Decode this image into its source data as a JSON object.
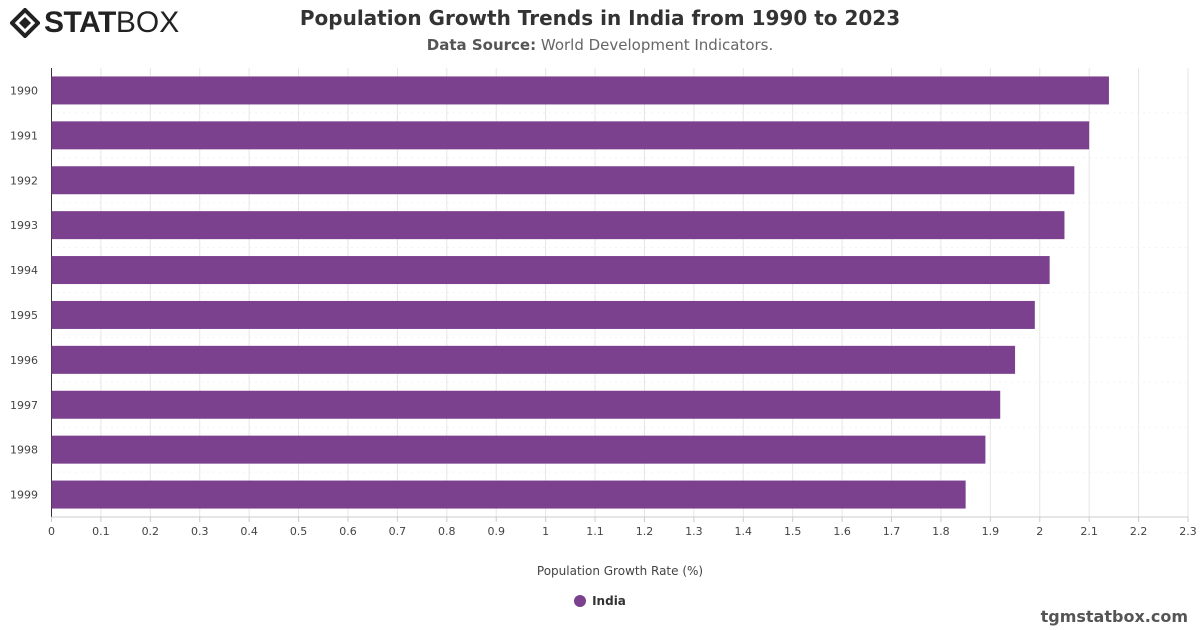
{
  "brand": {
    "logo_text_bold": "STAT",
    "logo_text_light": "BOX",
    "footer": "tgmstatbox.com"
  },
  "colors": {
    "bar": "#7b418e",
    "grid": "#e6e6e6"
  },
  "chart_data": {
    "type": "bar",
    "orientation": "horizontal",
    "title": "Population Growth Trends in India from 1990 to 2023",
    "subtitle_label": "Data Source:",
    "subtitle_value": "World Development Indicators.",
    "categories": [
      "1990",
      "1991",
      "1992",
      "1993",
      "1994",
      "1995",
      "1996",
      "1997",
      "1998",
      "1999"
    ],
    "series": [
      {
        "name": "India",
        "values": [
          2.14,
          2.1,
          2.07,
          2.05,
          2.02,
          1.99,
          1.95,
          1.92,
          1.89,
          1.85
        ]
      }
    ],
    "xlabel": "Population Growth Rate (%)",
    "ylabel": "",
    "xlim": [
      0,
      2.3
    ],
    "xticks": [
      "0",
      "0.1",
      "0.2",
      "0.3",
      "0.4",
      "0.5",
      "0.6",
      "0.7",
      "0.8",
      "0.9",
      "1",
      "1.1",
      "1.2",
      "1.3",
      "1.4",
      "1.5",
      "1.6",
      "1.7",
      "1.8",
      "1.9",
      "2",
      "2.1",
      "2.2",
      "2.3"
    ],
    "grid": true,
    "legend_position": "bottom"
  }
}
